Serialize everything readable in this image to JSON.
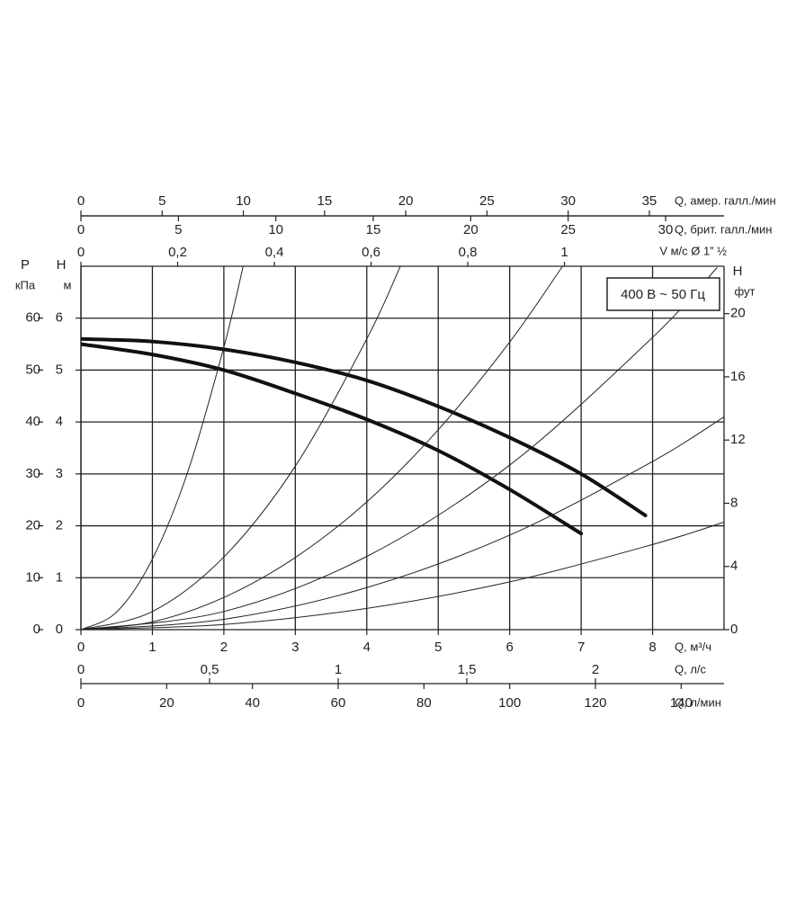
{
  "chart_data": {
    "type": "line",
    "annotation": "400 В ~ 50 Гц",
    "grid": true,
    "x_axes": [
      {
        "label": "Q, м³/ч",
        "lim": [
          0,
          9
        ],
        "ticks": [
          0,
          1,
          2,
          3,
          4,
          5,
          6,
          7,
          8
        ]
      },
      {
        "label": "Q, л/с",
        "lim": [
          0,
          2.5
        ],
        "ticks": [
          0,
          {
            "value": 0.5,
            "label": "0,5"
          },
          1,
          {
            "value": 1.5,
            "label": "1,5"
          },
          2
        ]
      },
      {
        "label": "Q, л/мин",
        "lim": [
          0,
          150
        ],
        "ticks": [
          0,
          20,
          40,
          60,
          80,
          100,
          120,
          140
        ]
      },
      {
        "label": "Q, амер. галл./мин",
        "lim": [
          0,
          39.6
        ],
        "ticks": [
          0,
          5,
          10,
          15,
          20,
          25,
          30,
          35
        ]
      },
      {
        "label": "Q, брит. галл./мин",
        "lim": [
          0,
          33
        ],
        "ticks": [
          0,
          5,
          10,
          15,
          20,
          25,
          30
        ]
      },
      {
        "label": "V м/с Ø 1” ½",
        "lim": [
          0,
          1.33
        ],
        "ticks": [
          0,
          {
            "value": 0.2,
            "label": "0,2"
          },
          {
            "value": 0.4,
            "label": "0,4"
          },
          {
            "value": 0.6,
            "label": "0,6"
          },
          {
            "value": 0.8,
            "label": "0,8"
          },
          1
        ]
      }
    ],
    "y_axes": [
      {
        "symbol": "H",
        "unit": "м",
        "lim": [
          0,
          7
        ],
        "ticks": [
          0,
          1,
          2,
          3,
          4,
          5,
          6
        ]
      },
      {
        "symbol": "P",
        "unit": "кПа",
        "lim": [
          0,
          70
        ],
        "ticks": [
          0,
          10,
          20,
          30,
          40,
          50,
          60
        ]
      },
      {
        "symbol": "H",
        "unit": "фут",
        "lim": [
          0,
          23
        ],
        "ticks": [
          0,
          4,
          8,
          12,
          16,
          20
        ]
      }
    ],
    "series": [
      {
        "color": "#111111",
        "width": 4,
        "x": [
          0,
          1,
          2,
          3,
          4,
          5,
          6,
          7,
          7.9
        ],
        "values": [
          5.6,
          5.55,
          5.4,
          5.15,
          4.8,
          4.3,
          3.7,
          3.0,
          2.2
        ]
      },
      {
        "color": "#111111",
        "width": 4,
        "x": [
          0,
          1,
          2,
          3,
          4,
          5,
          6,
          7
        ],
        "values": [
          5.5,
          5.3,
          5.0,
          4.55,
          4.05,
          3.45,
          2.7,
          1.85
        ]
      },
      {
        "color": "#222222",
        "width": 1,
        "x": [
          0,
          0.5,
          1,
          1.5,
          2,
          2.27
        ],
        "values": [
          0,
          0.34,
          1.36,
          3.06,
          5.44,
          7.0
        ]
      },
      {
        "color": "#222222",
        "width": 1,
        "x": [
          0,
          1,
          2,
          3,
          4,
          4.47
        ],
        "values": [
          0,
          0.35,
          1.4,
          3.15,
          5.6,
          7.0
        ]
      },
      {
        "color": "#222222",
        "width": 1,
        "x": [
          0,
          1,
          2,
          3,
          4,
          5,
          6,
          6.74
        ],
        "values": [
          0,
          0.15,
          0.62,
          1.39,
          2.46,
          3.85,
          5.54,
          7.0
        ]
      },
      {
        "color": "#222222",
        "width": 1,
        "x": [
          0,
          2,
          4,
          6,
          8,
          8.9
        ],
        "values": [
          0,
          0.35,
          1.41,
          3.17,
          5.63,
          6.97
        ]
      },
      {
        "color": "#222222",
        "width": 1,
        "x": [
          0,
          2,
          4,
          6,
          8,
          9
        ],
        "values": [
          0,
          0.2,
          0.81,
          1.82,
          3.24,
          4.1
        ]
      },
      {
        "color": "#222222",
        "width": 1,
        "x": [
          0,
          2,
          4,
          6,
          8,
          9
        ],
        "values": [
          0,
          0.1,
          0.41,
          0.92,
          1.64,
          2.07
        ]
      }
    ]
  }
}
